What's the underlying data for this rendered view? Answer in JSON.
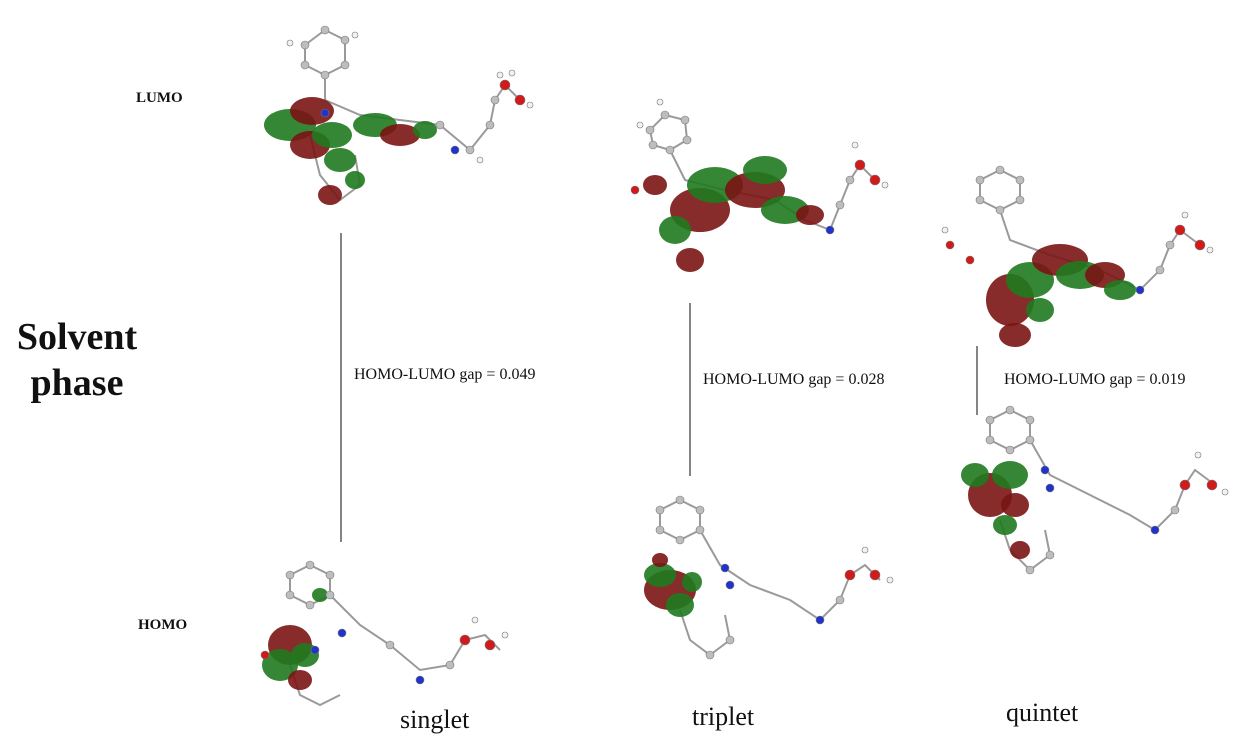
{
  "row_labels": {
    "top": "LUMO",
    "bottom": "HOMO"
  },
  "phase_label": {
    "line1": "Solvent",
    "line2": "phase"
  },
  "columns": [
    {
      "state": "singlet",
      "gap_label": "HOMO-LUMO gap = 0.049"
    },
    {
      "state": "triplet",
      "gap_label": "HOMO-LUMO gap = 0.028"
    },
    {
      "state": "quintet",
      "gap_label": "HOMO-LUMO gap = 0.019"
    }
  ],
  "colors": {
    "lobe_red": "#7a1414",
    "lobe_green": "#1f7a1f",
    "atom_carbon": "#bdbdbd",
    "atom_oxygen": "#d11a1a",
    "atom_nitrogen": "#2233cc",
    "atom_hydrogen": "#f2f2f2",
    "connector": "#333333"
  }
}
